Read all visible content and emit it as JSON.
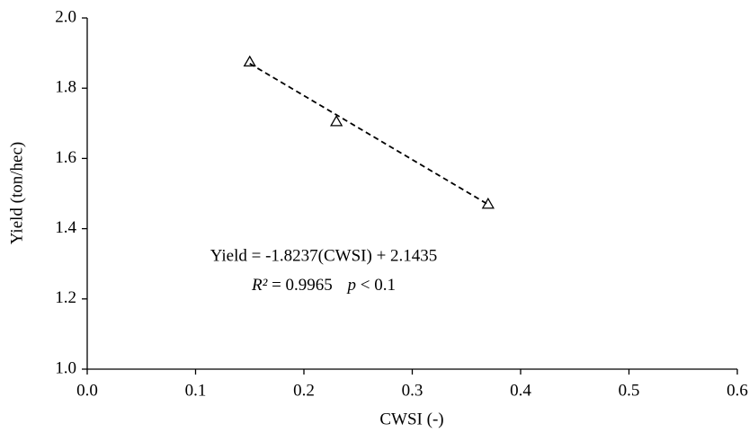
{
  "chart_data": {
    "type": "scatter",
    "x_label": "CWSI (-)",
    "y_label": "Yield (ton/hec)",
    "series": [
      {
        "color": "#000000",
        "x": [
          0.15,
          0.23,
          0.37
        ],
        "values": [
          1.875,
          1.705,
          1.47
        ]
      }
    ],
    "trendline": {
      "x": [
        0.15,
        0.37
      ],
      "values": [
        1.87,
        1.469
      ],
      "color": "#000000"
    },
    "equation": "Yield = -1.8237(CWSI) + 2.1435",
    "stats": {
      "r_symbol": "R²",
      "r_value": "= 0.9965",
      "p_symbol": "p",
      "p_value": "< 0.1"
    },
    "xlim": [
      0,
      0.6
    ],
    "xticks": [
      {
        "value": 0,
        "label": "0.0"
      },
      0.1,
      0.2,
      0.3,
      0.4,
      0.5,
      0.6
    ],
    "ylim": [
      1,
      2
    ],
    "yticks": [
      {
        "value": 1,
        "label": "1.0"
      },
      1.2,
      1.4,
      1.6,
      1.8,
      {
        "value": 2,
        "label": "2.0"
      }
    ],
    "grid": false
  }
}
